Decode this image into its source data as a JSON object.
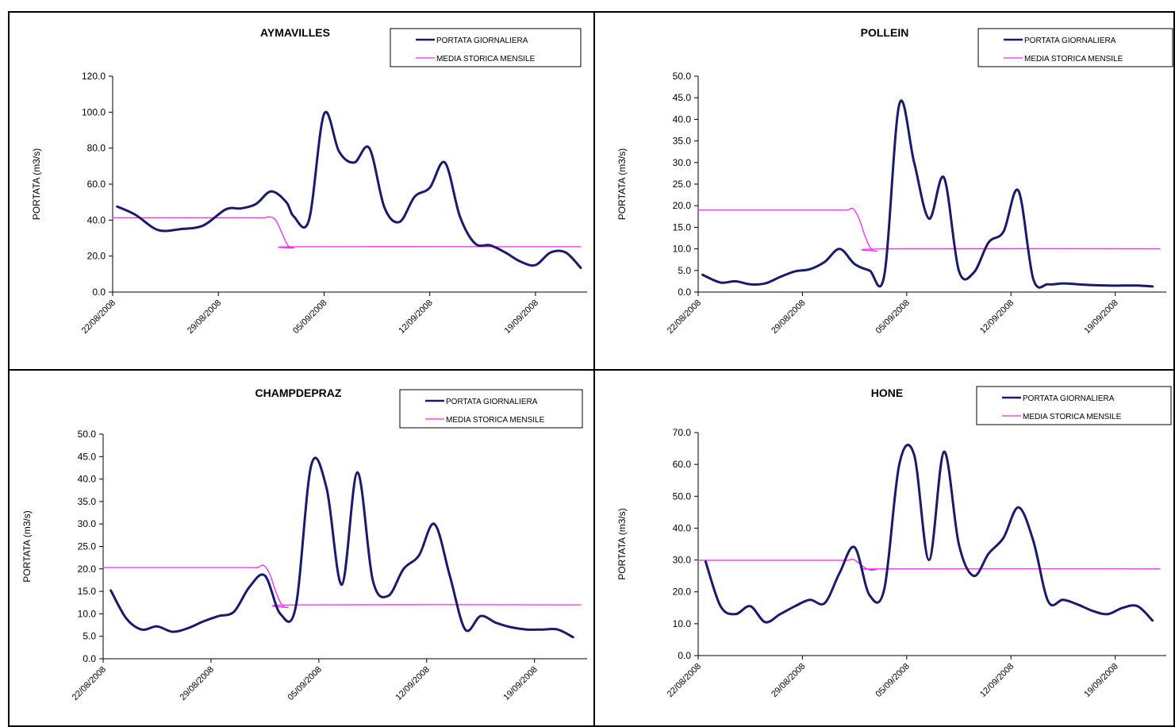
{
  "colors": {
    "daily": "#1a1a6e",
    "historical": "#ff22ff",
    "axis": "#000000"
  },
  "legend": {
    "daily": "PORTATA GIORNALIERA",
    "historical": "MEDIA STORICA MENSILE"
  },
  "chart_data": [
    {
      "type": "line",
      "title": "AYMAVILLES",
      "ylabel": "PORTATA (m3/s)",
      "ylim": [
        0,
        120
      ],
      "ystep": 20,
      "xlim": [
        0,
        31
      ],
      "legend_position": "top-right",
      "xtick_labels": [
        "22/08/2008",
        "29/08/2008",
        "05/09/2008",
        "12/09/2008",
        "19/09/2008"
      ],
      "series": [
        {
          "name": "PORTATA GIORNALIERA",
          "x": [
            0.3,
            1.5,
            3,
            4.5,
            6,
            7.5,
            8.5,
            9.5,
            10.5,
            11.5,
            12,
            13,
            14,
            15,
            16,
            17,
            18,
            19,
            20,
            21,
            22,
            23,
            24,
            25,
            26,
            27,
            28,
            29,
            30,
            31
          ],
          "y": [
            47.5,
            43,
            34.5,
            35,
            37,
            46,
            46.5,
            49,
            56,
            50,
            42,
            40,
            99,
            78,
            72,
            80,
            47,
            39,
            53,
            58,
            72,
            42,
            27,
            26,
            22,
            17,
            15,
            22,
            22,
            13.5
          ]
        },
        {
          "name": "MEDIA STORICA MENSILE",
          "x": [
            0,
            9,
            10,
            10.4,
            10.8,
            11.2,
            11.6,
            12,
            12.5,
            31
          ],
          "y": [
            41.3,
            41.3,
            41.3,
            41.8,
            40,
            33,
            26,
            24.5,
            25.2,
            25.2
          ]
        }
      ]
    },
    {
      "type": "line",
      "title": "POLLEIN",
      "ylabel": "PORTATA (m3/s)",
      "ylim": [
        0,
        50
      ],
      "ystep": 5,
      "xlim": [
        0,
        31
      ],
      "legend_position": "top-right",
      "xtick_labels": [
        "22/08/2008",
        "29/08/2008",
        "05/09/2008",
        "12/09/2008",
        "19/09/2008"
      ],
      "series": [
        {
          "name": "PORTATA GIORNALIERA",
          "x": [
            0.3,
            1.5,
            2.5,
            3.5,
            4.5,
            5.5,
            6.5,
            7.5,
            8.5,
            9.5,
            10.5,
            11.5,
            12.5,
            13.5,
            14.5,
            15.5,
            16.5,
            17.5,
            18.5,
            19.5,
            20.5,
            21.5,
            22.5,
            23.5,
            24.5,
            25.5,
            26.5,
            27.5,
            28.5,
            29.5,
            30.5
          ],
          "y": [
            4,
            2.2,
            2.5,
            1.8,
            2,
            3.5,
            4.8,
            5.3,
            7,
            10,
            6.5,
            5,
            4,
            43.5,
            30,
            17,
            26.5,
            5,
            4.5,
            11.5,
            14,
            23.5,
            3,
            1.8,
            2,
            1.8,
            1.6,
            1.5,
            1.5,
            1.5,
            1.3
          ]
        },
        {
          "name": "MEDIA STORICA MENSILE",
          "x": [
            0,
            9,
            10,
            10.4,
            10.8,
            11.2,
            11.6,
            12,
            12.5,
            31
          ],
          "y": [
            19,
            19,
            19,
            19.3,
            17,
            13,
            10,
            9.5,
            10,
            10
          ]
        }
      ]
    },
    {
      "type": "line",
      "title": "CHAMPDEPRAZ",
      "ylabel": "PORTATA (m3/s)",
      "ylim": [
        0,
        50
      ],
      "ystep": 5,
      "xlim": [
        0,
        31
      ],
      "legend_position": "top-right",
      "xtick_labels": [
        "22/08/2008",
        "29/08/2008",
        "05/09/2008",
        "12/09/2008",
        "19/09/2008"
      ],
      "series": [
        {
          "name": "PORTATA GIORNALIERA",
          "x": [
            0.5,
            1.5,
            2.5,
            3.5,
            4.5,
            5.5,
            6.5,
            7.5,
            8.5,
            9.5,
            10.5,
            11.5,
            12.5,
            13.5,
            14.5,
            15.5,
            16.5,
            17.5,
            18.5,
            19.5,
            20.5,
            21.5,
            22.5,
            23.5,
            24.5,
            25.5,
            26.5,
            27.5,
            28.5,
            29.5,
            30.5
          ],
          "y": [
            15.2,
            9,
            6.5,
            7.2,
            6,
            6.8,
            8.3,
            9.5,
            10.5,
            16,
            18.5,
            10,
            11.5,
            43,
            38,
            16.5,
            41.5,
            17.5,
            14,
            20,
            23,
            30,
            18.5,
            6.5,
            9.5,
            8,
            7,
            6.5,
            6.5,
            6.5,
            4.8
          ]
        },
        {
          "name": "MEDIA STORICA MENSILE",
          "x": [
            0,
            9,
            10,
            10.4,
            10.8,
            11.2,
            11.6,
            12,
            12.5,
            31
          ],
          "y": [
            20.3,
            20.3,
            20.3,
            20.8,
            19,
            15,
            12,
            11.4,
            12,
            12
          ]
        }
      ]
    },
    {
      "type": "line",
      "title": "HONE",
      "ylabel": "PORTATA (m3/s)",
      "ylim": [
        0,
        70
      ],
      "ystep": 10,
      "xlim": [
        0,
        31
      ],
      "legend_position": "top-right",
      "xtick_labels": [
        "22/08/2008",
        "29/08/2008",
        "05/09/2008",
        "12/09/2008",
        "19/09/2008"
      ],
      "series": [
        {
          "name": "PORTATA GIORNALIERA",
          "x": [
            0.5,
            1.5,
            2.5,
            3.5,
            4.5,
            5.5,
            6.5,
            7.5,
            8.5,
            9.5,
            10.5,
            11.5,
            12.5,
            13.5,
            14.5,
            15.5,
            16.5,
            17.5,
            18.5,
            19.5,
            20.5,
            21.5,
            22.5,
            23.5,
            24.5,
            25.5,
            26.5,
            27.5,
            28.5,
            29.5,
            30.5
          ],
          "y": [
            29.5,
            15.5,
            13,
            15.5,
            10.5,
            13,
            15.5,
            17.5,
            16.5,
            26,
            34,
            19,
            21,
            60,
            63,
            30,
            64,
            35,
            25,
            32,
            37,
            46.5,
            36,
            17,
            17.5,
            16,
            14,
            13,
            15,
            15.5,
            11
          ]
        },
        {
          "name": "MEDIA STORICA MENSILE",
          "x": [
            0,
            9,
            10,
            10.4,
            10.8,
            11.2,
            11.6,
            12,
            12.5,
            31
          ],
          "y": [
            29.9,
            29.9,
            29.9,
            30.2,
            29,
            27.5,
            26.8,
            27,
            27.2,
            27.2
          ]
        }
      ]
    }
  ]
}
